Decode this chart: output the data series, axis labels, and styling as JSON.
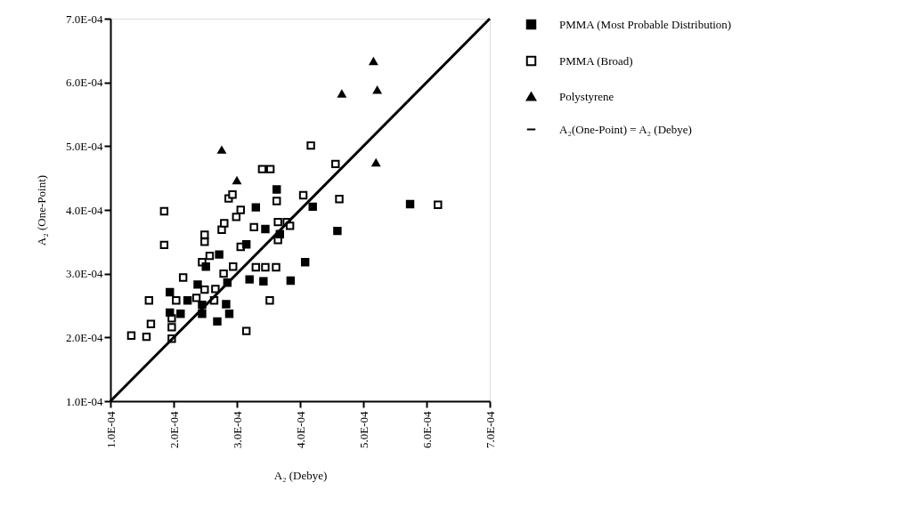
{
  "chart_data": {
    "type": "scatter",
    "xlabel": "A₂ (Debye)",
    "ylabel": "A₂ (One-Point)",
    "xlim": [
      0.0001,
      0.0007
    ],
    "ylim": [
      0.0001,
      0.0007
    ],
    "xticks": [
      {
        "value": 0.0001,
        "label": "1.0E-04"
      },
      {
        "value": 0.0002,
        "label": "2.0E-04"
      },
      {
        "value": 0.0003,
        "label": "3.0E-04"
      },
      {
        "value": 0.0004,
        "label": "4.0E-04"
      },
      {
        "value": 0.0005,
        "label": "5.0E-04"
      },
      {
        "value": 0.0006,
        "label": "6.0E-04"
      },
      {
        "value": 0.0007,
        "label": "7.0E-04"
      }
    ],
    "yticks": [
      {
        "value": 0.0001,
        "label": "1.0E-04"
      },
      {
        "value": 0.0002,
        "label": "2.0E-04"
      },
      {
        "value": 0.0003,
        "label": "3.0E-04"
      },
      {
        "value": 0.0004,
        "label": "4.0E-04"
      },
      {
        "value": 0.0005,
        "label": "5.0E-04"
      },
      {
        "value": 0.0006,
        "label": "6.0E-04"
      },
      {
        "value": 0.0007,
        "label": "7.0E-04"
      }
    ],
    "grid": false,
    "legend": "right",
    "series": [
      {
        "name": "PMMA (Most Probable Distribution)",
        "color": "#000000",
        "marker": "square",
        "x": [
          0.000194,
          0.000194,
          0.000211,
          0.000222,
          0.000238,
          0.000245,
          0.000245,
          0.000251,
          0.000269,
          0.000272,
          0.000283,
          0.000288,
          0.000285,
          0.000315,
          0.00032,
          0.00033,
          0.000342,
          0.000345,
          0.000363,
          0.000368,
          0.000385,
          0.000408,
          0.00042,
          0.000459,
          0.000574
        ],
        "values": [
          0.000239,
          0.000271,
          0.000237,
          0.000258,
          0.000283,
          0.000251,
          0.000237,
          0.000311,
          0.000225,
          0.00033,
          0.000252,
          0.000237,
          0.000286,
          0.000346,
          0.000291,
          0.000404,
          0.000288,
          0.00037,
          0.000432,
          0.000362,
          0.000289,
          0.000318,
          0.000405,
          0.000367,
          0.000409
        ]
      },
      {
        "name": "PMMA (Broad)",
        "color": "#ffffff",
        "marker": "square",
        "x": [
          0.000133,
          0.000157,
          0.000164,
          0.000161,
          0.000185,
          0.000185,
          0.000197,
          0.000197,
          0.000197,
          0.000204,
          0.000215,
          0.000236,
          0.000245,
          0.000249,
          0.000249,
          0.000249,
          0.000257,
          0.000264,
          0.000266,
          0.000276,
          0.000279,
          0.00028,
          0.000287,
          0.000293,
          0.000294,
          0.000299,
          0.000306,
          0.000306,
          0.000315,
          0.000327,
          0.00033,
          0.000345,
          0.000362,
          0.000352,
          0.00034,
          0.000353,
          0.000363,
          0.000365,
          0.000365,
          0.000379,
          0.000384,
          0.000405,
          0.000417,
          0.000456,
          0.000462,
          0.000618
        ],
        "values": [
          0.000203,
          0.000201,
          0.000221,
          0.000258,
          0.000345,
          0.000398,
          0.000198,
          0.000216,
          0.00023,
          0.000258,
          0.000294,
          0.000262,
          0.000318,
          0.000275,
          0.00035,
          0.000361,
          0.000328,
          0.000258,
          0.000276,
          0.000369,
          0.0003,
          0.000379,
          0.000418,
          0.000424,
          0.000311,
          0.000389,
          0.0004,
          0.000342,
          0.00021,
          0.000373,
          0.00031,
          0.00031,
          0.00031,
          0.000258,
          0.000464,
          0.000464,
          0.000414,
          0.000381,
          0.000353,
          0.000381,
          0.000375,
          0.000423,
          0.000501,
          0.000472,
          0.000417,
          0.000408
        ]
      },
      {
        "name": "Polystyrene",
        "color": "#000000",
        "marker": "triangle",
        "x": [
          0.000276,
          0.0003,
          0.000466,
          0.000516,
          0.000522,
          0.00052
        ],
        "values": [
          0.000494,
          0.000446,
          0.000582,
          0.000633,
          0.000588,
          0.000474
        ]
      },
      {
        "name": "A₂(One-Point) = A₂ (Debye)",
        "color": "#000000",
        "type": "line",
        "marker": "none",
        "line_style": "solid",
        "x": [
          0.0001,
          0.0007
        ],
        "values": [
          0.0001,
          0.0007
        ]
      }
    ]
  }
}
